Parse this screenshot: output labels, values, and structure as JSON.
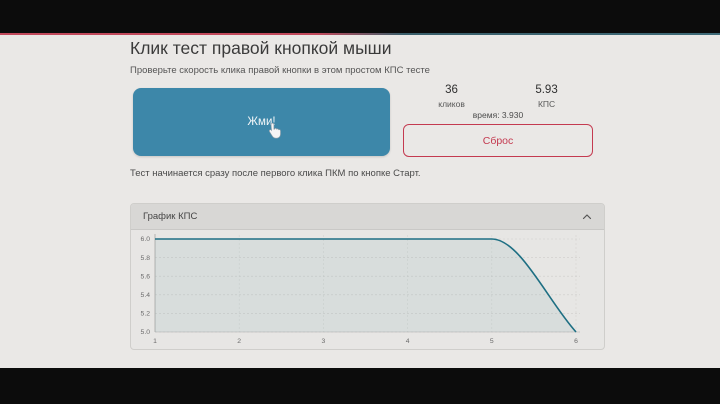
{
  "page": {
    "title": "Клик тест правой кнопкой мыши",
    "subtitle": "Проверьте скорость клика правой кнопки в этом простом КПС тесте",
    "note": "Тест начинается сразу после первого клика ПКМ по кнопке Старт."
  },
  "test": {
    "click_button_label": "Жми!",
    "stats": [
      {
        "value": "36",
        "label": "кликов"
      },
      {
        "value": "5.93",
        "label": "КПС"
      }
    ],
    "time_label": "время: 3.930",
    "reset_button_label": "Сброс"
  },
  "chart_panel": {
    "title": "График КПС"
  },
  "chart_data": {
    "type": "line",
    "title": "График КПС",
    "xlabel": "",
    "ylabel": "",
    "x": [
      1,
      2,
      3,
      4,
      5,
      6
    ],
    "series": [
      {
        "name": "КПС",
        "values": [
          6.0,
          6.0,
          6.0,
          6.0,
          6.0,
          5.0
        ]
      }
    ],
    "xticks": [
      1,
      2,
      3,
      4,
      5,
      6
    ],
    "yticks": [
      5.0,
      5.2,
      5.4,
      5.6,
      5.8,
      6.0
    ],
    "xlim": [
      1,
      6
    ],
    "ylim": [
      5.0,
      6.0
    ],
    "grid": true,
    "legend": "none",
    "line_color": "#1e6f83",
    "fill_color": "rgba(30,111,131,0.07)",
    "grid_color": "#c7c6c4",
    "axis_color": "#b3b2b0",
    "tick_label_color": "#6b6b6b"
  },
  "colors": {
    "accent_red": "#c24a5c",
    "accent_teal": "#3f6b78",
    "click_button_blue": "#3d87a9",
    "reset_red": "#c43a50"
  }
}
